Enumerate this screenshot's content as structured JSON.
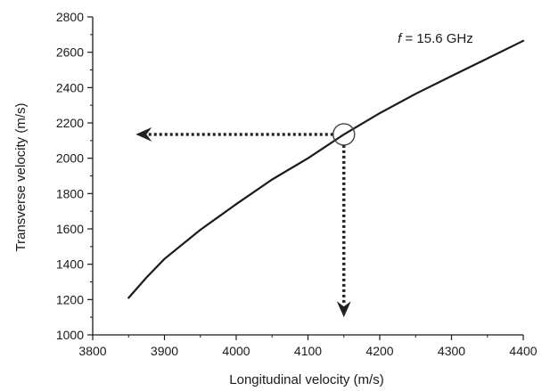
{
  "chart_data": {
    "type": "line",
    "title": "",
    "xlabel": "Longitudinal velocity (m/s)",
    "ylabel": "Transverse velocity (m/s)",
    "xlim": [
      3800,
      4400
    ],
    "ylim": [
      1000,
      2800
    ],
    "xticks": [
      3800,
      3900,
      4000,
      4100,
      4200,
      4300,
      4400
    ],
    "yticks": [
      1000,
      1200,
      1400,
      1600,
      1800,
      2000,
      2200,
      2400,
      2600,
      2800
    ],
    "grid": false,
    "legend": "none",
    "series": [
      {
        "name": "",
        "x": [
          3850,
          3875,
          3900,
          3950,
          4000,
          4050,
          4100,
          4150,
          4200,
          4250,
          4300,
          4350,
          4400
        ],
        "y": [
          1210,
          1325,
          1430,
          1595,
          1740,
          1880,
          2000,
          2135,
          2255,
          2365,
          2465,
          2565,
          2665
        ]
      }
    ],
    "annotation": {
      "text_italic": "f",
      "text_rest": " = 15.6 GHz",
      "x": 4225,
      "y": 2655
    },
    "marker": {
      "x": 4150,
      "y": 2135
    },
    "arrow_left_to_x": 3860,
    "arrow_down_to_y": 1100,
    "colors": {
      "line": "#1a1a1a",
      "axis": "#1a1a1a",
      "arrow": "#222222"
    }
  }
}
